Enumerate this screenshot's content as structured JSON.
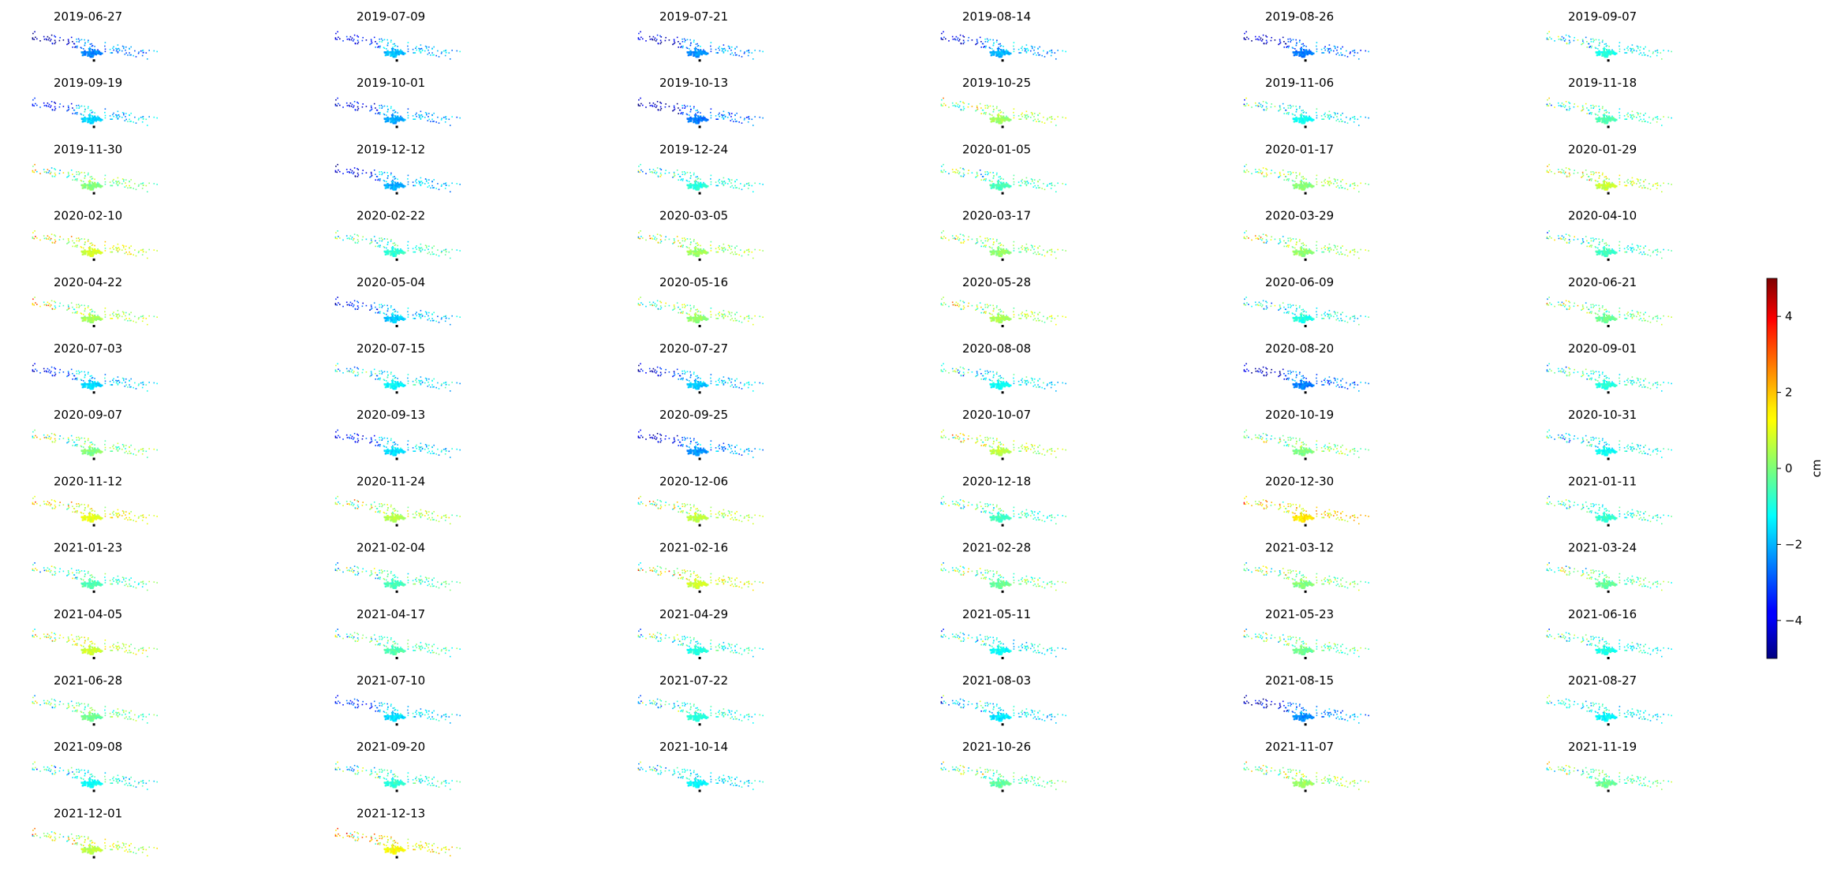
{
  "chart_data": {
    "type": "scatter",
    "layout": "small-multiples grid, 6 columns",
    "panels": [
      "2019-06-27",
      "2019-07-09",
      "2019-07-21",
      "2019-08-14",
      "2019-08-26",
      "2019-09-07",
      "2019-09-19",
      "2019-10-01",
      "2019-10-13",
      "2019-10-25",
      "2019-11-06",
      "2019-11-18",
      "2019-11-30",
      "2019-12-12",
      "2019-12-24",
      "2020-01-05",
      "2020-01-17",
      "2020-01-29",
      "2020-02-10",
      "2020-02-22",
      "2020-03-05",
      "2020-03-17",
      "2020-03-29",
      "2020-04-10",
      "2020-04-22",
      "2020-05-04",
      "2020-05-16",
      "2020-05-28",
      "2020-06-09",
      "2020-06-21",
      "2020-07-03",
      "2020-07-15",
      "2020-07-27",
      "2020-08-08",
      "2020-08-20",
      "2020-09-01",
      "2020-09-07",
      "2020-09-13",
      "2020-09-25",
      "2020-10-07",
      "2020-10-19",
      "2020-10-31",
      "2020-11-12",
      "2020-11-24",
      "2020-12-06",
      "2020-12-18",
      "2020-12-30",
      "2021-01-11",
      "2021-01-23",
      "2021-02-04",
      "2021-02-16",
      "2021-02-28",
      "2021-03-12",
      "2021-03-24",
      "2021-04-05",
      "2021-04-17",
      "2021-04-29",
      "2021-05-11",
      "2021-05-23",
      "2021-06-16",
      "2021-06-28",
      "2021-07-10",
      "2021-07-22",
      "2021-08-03",
      "2021-08-15",
      "2021-08-27",
      "2021-09-08",
      "2021-09-20",
      "2021-10-14",
      "2021-10-26",
      "2021-11-07",
      "2021-11-19",
      "2021-12-01",
      "2021-12-13"
    ],
    "panel_mean_cm": [
      -2.5,
      -1.9,
      -2.3,
      -2.0,
      -2.6,
      -1.0,
      -1.7,
      -2.1,
      -2.6,
      0.3,
      -1.2,
      -0.5,
      0.0,
      -2.1,
      -0.9,
      -0.6,
      0.1,
      0.7,
      0.8,
      -0.8,
      0.3,
      0.2,
      0.2,
      -0.7,
      0.4,
      -1.8,
      0.2,
      0.4,
      -1.0,
      -0.2,
      -1.6,
      -1.3,
      -1.8,
      -1.2,
      -2.5,
      -0.9,
      0.0,
      -1.6,
      -2.3,
      0.6,
      0.0,
      -1.2,
      1.0,
      0.5,
      0.6,
      -0.6,
      1.5,
      -0.8,
      -0.5,
      -0.6,
      0.8,
      -0.2,
      0.0,
      -0.3,
      0.8,
      -0.5,
      -1.0,
      -1.2,
      -0.2,
      -1.0,
      -0.2,
      -1.6,
      -0.9,
      -1.5,
      -2.4,
      -1.3,
      -1.2,
      -0.8,
      -1.3,
      -0.3,
      0.3,
      -0.2,
      0.6,
      1.2
    ],
    "colorbar": {
      "label": "cm",
      "colormap": "jet",
      "range": [
        -5,
        5
      ],
      "ticks": [
        4,
        2,
        0,
        -2,
        -4
      ],
      "tick_labels": [
        "4",
        "2",
        "0",
        "−2",
        "−4"
      ]
    },
    "grid": false,
    "axes_visible": false
  }
}
